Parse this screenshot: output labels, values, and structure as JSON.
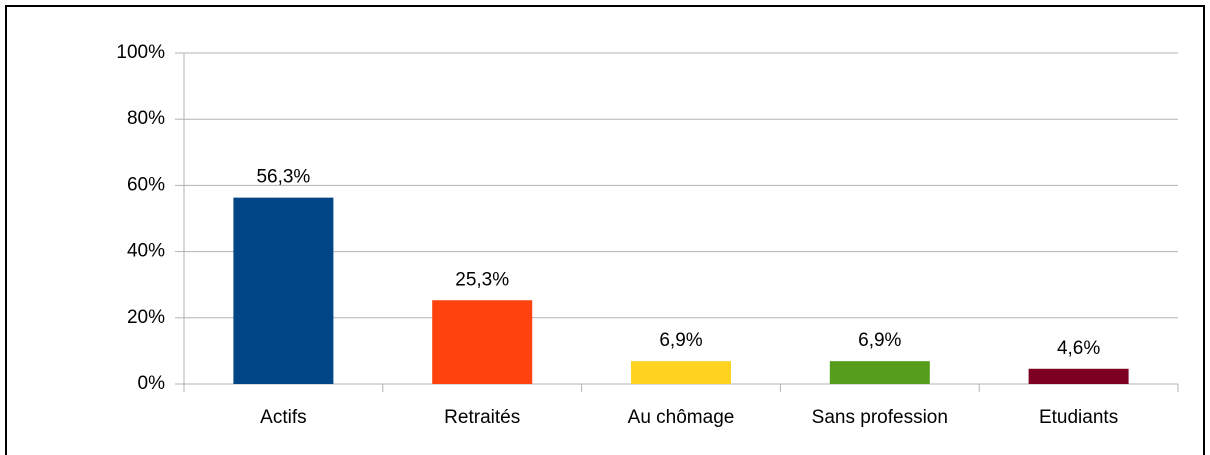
{
  "chart_data": {
    "type": "bar",
    "categories": [
      "Actifs",
      "Retraités",
      "Au chômage",
      "Sans profession",
      "Etudiants"
    ],
    "values": [
      56.3,
      25.3,
      6.9,
      6.9,
      4.6
    ],
    "value_labels": [
      "56,3%",
      "25,3%",
      "6,9%",
      "6,9%",
      "4,6%"
    ],
    "colors": [
      "#004586",
      "#ff420e",
      "#ffd320",
      "#579d1c",
      "#7e0021"
    ],
    "ylim": [
      0,
      100
    ],
    "yticks": [
      {
        "value": 0,
        "label": "0%"
      },
      {
        "value": 20,
        "label": "20%"
      },
      {
        "value": 40,
        "label": "40%"
      },
      {
        "value": 60,
        "label": "60%"
      },
      {
        "value": 80,
        "label": "80%"
      },
      {
        "value": 100,
        "label": "100%"
      }
    ],
    "grid": true
  }
}
